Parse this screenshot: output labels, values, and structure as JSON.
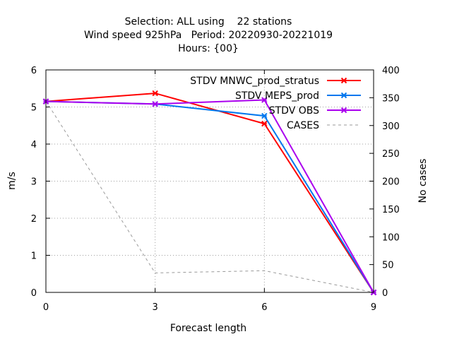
{
  "chart_data": {
    "type": "line",
    "title_lines": [
      "Selection: ALL using    22 stations",
      "Wind speed 925hPa   Period: 20220930-20221019",
      "Hours: {00}"
    ],
    "xlabel": "Forecast length",
    "ylabel": "m/s",
    "y2label": "No cases",
    "x": [
      0,
      3,
      6,
      9
    ],
    "xlim": [
      0,
      9
    ],
    "ylim": [
      0,
      6
    ],
    "y2lim": [
      0,
      400
    ],
    "xticks": [
      "0",
      "3",
      "6",
      "9"
    ],
    "yticks": [
      "0",
      "1",
      "2",
      "3",
      "4",
      "5",
      "6"
    ],
    "y2ticks": [
      "0",
      "50",
      "100",
      "150",
      "200",
      "250",
      "300",
      "350",
      "400"
    ],
    "grid": true,
    "legend_position": "top-right",
    "series": [
      {
        "name": "STDV MNWC_prod_stratus",
        "axis": "y",
        "color": "#ff0000",
        "marker": "x",
        "values": [
          5.15,
          5.37,
          4.55,
          0
        ]
      },
      {
        "name": "STDV MEPS_prod",
        "axis": "y",
        "color": "#0077ee",
        "marker": "x",
        "values": [
          5.15,
          5.08,
          4.76,
          0
        ]
      },
      {
        "name": "STDV OBS",
        "axis": "y",
        "color": "#aa00ee",
        "marker": "x",
        "values": [
          5.15,
          5.08,
          5.19,
          0
        ]
      },
      {
        "name": "CASES",
        "axis": "y2",
        "color": "#999999",
        "dashed": true,
        "values": [
          344,
          35,
          39,
          0
        ]
      }
    ]
  }
}
